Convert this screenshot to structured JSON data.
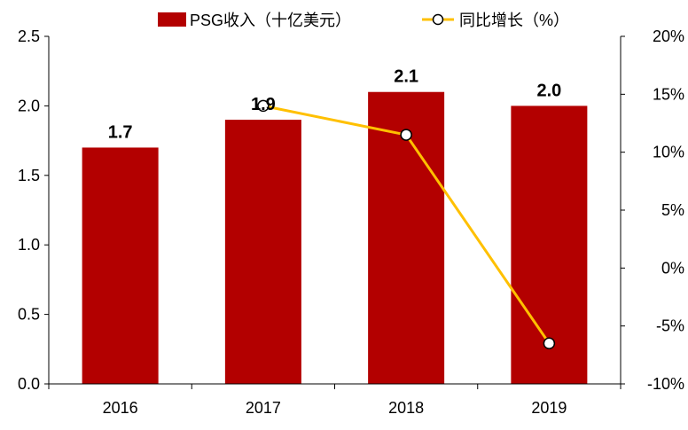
{
  "chart_data": {
    "type": "bar",
    "categories": [
      "2016",
      "2017",
      "2018",
      "2019"
    ],
    "series": [
      {
        "name": "PSG收入（十亿美元）",
        "type": "bar",
        "axis": "left",
        "values": [
          1.7,
          1.9,
          2.1,
          2.0
        ],
        "labels": [
          "1.7",
          "1.9",
          "2.1",
          "2.0"
        ],
        "color": "#B30000"
      },
      {
        "name": "同比增长（%）",
        "type": "line",
        "axis": "right",
        "values": [
          null,
          14.0,
          11.5,
          -6.5
        ],
        "color": "#FFC000"
      }
    ],
    "y_left": {
      "ylim": [
        0,
        2.5
      ],
      "ticks": [
        0.0,
        0.5,
        1.0,
        1.5,
        2.0,
        2.5
      ],
      "tick_labels": [
        "0.0",
        "0.5",
        "1.0",
        "1.5",
        "2.0",
        "2.5"
      ]
    },
    "y_right": {
      "ylim": [
        -10,
        20
      ],
      "ticks": [
        -10,
        -5,
        0,
        5,
        10,
        15,
        20
      ],
      "tick_labels": [
        "-10%",
        "-5%",
        "0%",
        "5%",
        "10%",
        "15%",
        "20%"
      ]
    },
    "legend_position": "top-center",
    "grid": false
  }
}
